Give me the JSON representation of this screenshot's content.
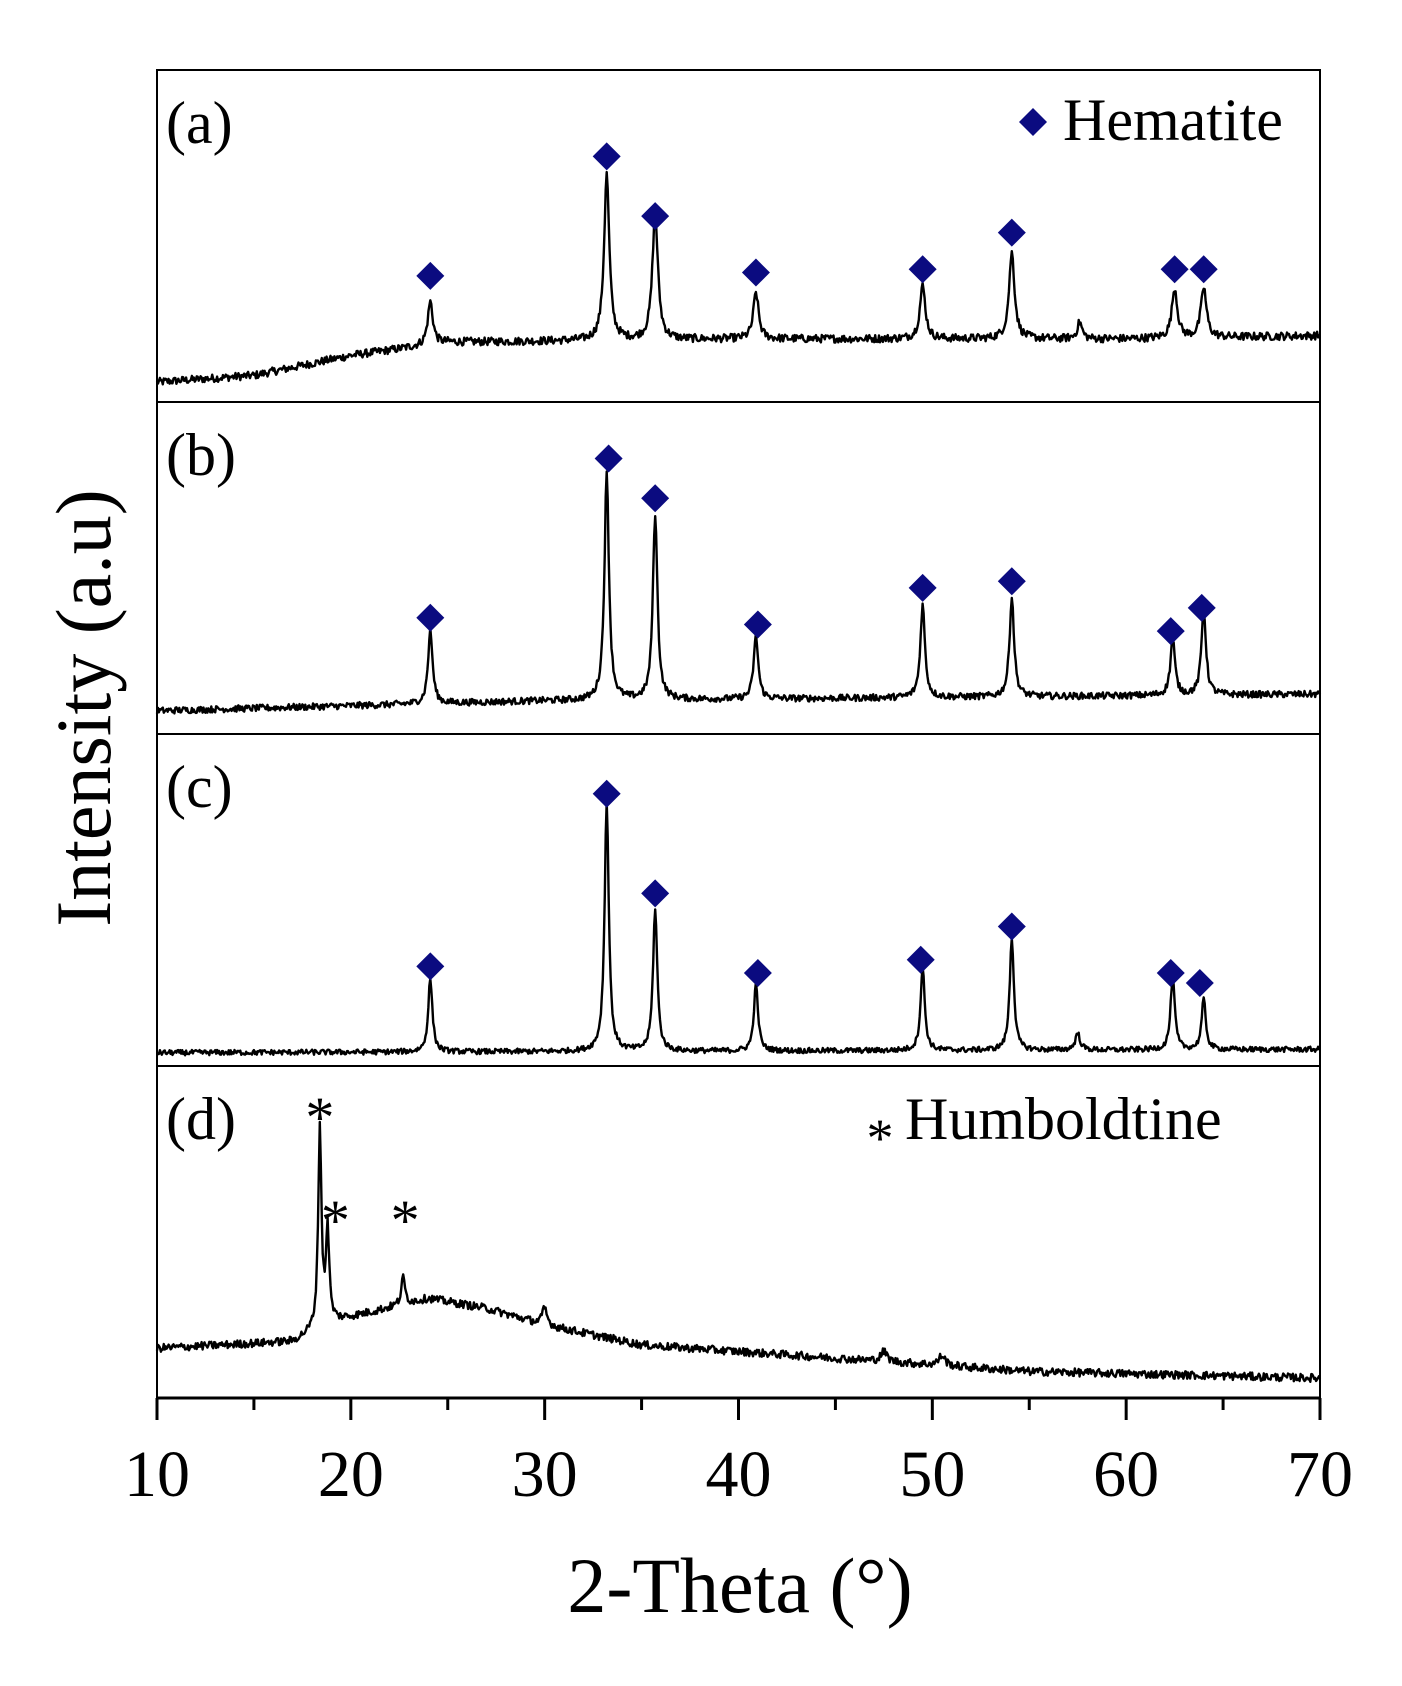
{
  "chart_data": {
    "type": "line",
    "xlabel": "2-Theta (°)",
    "ylabel": "Intensity (a.u)",
    "xlim": [
      10,
      70
    ],
    "x_ticks": [
      10,
      20,
      30,
      40,
      50,
      60,
      70
    ],
    "x_tick_labels": [
      "10",
      "20",
      "30",
      "40",
      "50",
      "60",
      "70"
    ],
    "y_units": "relative intensity (0 = panel bottom, 1 = panel top)",
    "panels": [
      {
        "label": "(a)",
        "baseline": [
          [
            10,
            0.06
          ],
          [
            15,
            0.08
          ],
          [
            20,
            0.14
          ],
          [
            25,
            0.18
          ],
          [
            40,
            0.19
          ],
          [
            60,
            0.19
          ],
          [
            70,
            0.2
          ]
        ],
        "noise": 0.012,
        "peaks": [
          {
            "x": 24.1,
            "height": 0.13,
            "width": 0.16
          },
          {
            "x": 33.2,
            "height": 0.5,
            "width": 0.16
          },
          {
            "x": 35.7,
            "height": 0.38,
            "width": 0.17
          },
          {
            "x": 40.9,
            "height": 0.14,
            "width": 0.16
          },
          {
            "x": 49.5,
            "height": 0.16,
            "width": 0.17
          },
          {
            "x": 54.1,
            "height": 0.26,
            "width": 0.17
          },
          {
            "x": 57.6,
            "height": 0.05,
            "width": 0.15
          },
          {
            "x": 62.5,
            "height": 0.15,
            "width": 0.17
          },
          {
            "x": 64.0,
            "height": 0.15,
            "width": 0.17
          }
        ],
        "markers": [
          {
            "x": 24.1,
            "y": 0.38
          },
          {
            "x": 33.2,
            "y": 0.74
          },
          {
            "x": 35.7,
            "y": 0.56
          },
          {
            "x": 40.9,
            "y": 0.39
          },
          {
            "x": 49.5,
            "y": 0.4
          },
          {
            "x": 54.1,
            "y": 0.51
          },
          {
            "x": 62.5,
            "y": 0.4
          },
          {
            "x": 64.0,
            "y": 0.4
          }
        ],
        "marker_symbol": "diamond"
      },
      {
        "label": "(b)",
        "baseline": [
          [
            10,
            0.07
          ],
          [
            30,
            0.1
          ],
          [
            50,
            0.11
          ],
          [
            70,
            0.12
          ]
        ],
        "noise": 0.01,
        "peaks": [
          {
            "x": 24.1,
            "height": 0.22,
            "width": 0.14
          },
          {
            "x": 33.2,
            "height": 0.68,
            "width": 0.14
          },
          {
            "x": 35.7,
            "height": 0.56,
            "width": 0.14
          },
          {
            "x": 40.9,
            "height": 0.19,
            "width": 0.14
          },
          {
            "x": 49.5,
            "height": 0.28,
            "width": 0.14
          },
          {
            "x": 54.1,
            "height": 0.3,
            "width": 0.14
          },
          {
            "x": 62.4,
            "height": 0.17,
            "width": 0.14
          },
          {
            "x": 64.0,
            "height": 0.26,
            "width": 0.14
          }
        ],
        "markers": [
          {
            "x": 24.1,
            "y": 0.35
          },
          {
            "x": 33.3,
            "y": 0.83
          },
          {
            "x": 35.7,
            "y": 0.71
          },
          {
            "x": 41.0,
            "y": 0.33
          },
          {
            "x": 49.5,
            "y": 0.44
          },
          {
            "x": 54.1,
            "y": 0.46
          },
          {
            "x": 62.3,
            "y": 0.31
          },
          {
            "x": 63.9,
            "y": 0.38
          }
        ],
        "marker_symbol": "diamond"
      },
      {
        "label": "(c)",
        "baseline": [
          [
            10,
            0.04
          ],
          [
            70,
            0.05
          ]
        ],
        "noise": 0.008,
        "peaks": [
          {
            "x": 24.1,
            "height": 0.22,
            "width": 0.13
          },
          {
            "x": 33.2,
            "height": 0.75,
            "width": 0.13
          },
          {
            "x": 35.7,
            "height": 0.43,
            "width": 0.13
          },
          {
            "x": 40.9,
            "height": 0.2,
            "width": 0.13
          },
          {
            "x": 49.5,
            "height": 0.25,
            "width": 0.13
          },
          {
            "x": 54.1,
            "height": 0.34,
            "width": 0.13
          },
          {
            "x": 57.5,
            "height": 0.05,
            "width": 0.15
          },
          {
            "x": 62.4,
            "height": 0.22,
            "width": 0.13
          },
          {
            "x": 64.0,
            "height": 0.15,
            "width": 0.13
          }
        ],
        "markers": [
          {
            "x": 24.1,
            "y": 0.3
          },
          {
            "x": 33.2,
            "y": 0.82
          },
          {
            "x": 35.7,
            "y": 0.52
          },
          {
            "x": 41.0,
            "y": 0.28
          },
          {
            "x": 49.4,
            "y": 0.32
          },
          {
            "x": 54.1,
            "y": 0.42
          },
          {
            "x": 62.3,
            "y": 0.28
          },
          {
            "x": 63.8,
            "y": 0.25
          }
        ],
        "marker_symbol": "diamond"
      },
      {
        "label": "(d)",
        "baseline": [
          [
            10,
            0.15
          ],
          [
            17,
            0.17
          ],
          [
            19,
            0.23
          ],
          [
            24,
            0.3
          ],
          [
            27,
            0.27
          ],
          [
            30,
            0.22
          ],
          [
            35,
            0.16
          ],
          [
            45,
            0.12
          ],
          [
            55,
            0.08
          ],
          [
            70,
            0.06
          ]
        ],
        "noise": 0.012,
        "peaks": [
          {
            "x": 18.4,
            "height": 0.6,
            "width": 0.1
          },
          {
            "x": 18.8,
            "height": 0.28,
            "width": 0.1
          },
          {
            "x": 22.7,
            "height": 0.08,
            "width": 0.12
          },
          {
            "x": 30.0,
            "height": 0.05,
            "width": 0.15
          },
          {
            "x": 47.5,
            "height": 0.03,
            "width": 0.2
          },
          {
            "x": 50.5,
            "height": 0.03,
            "width": 0.2
          }
        ],
        "markers": [
          {
            "x": 18.4,
            "y": 0.87
          },
          {
            "x": 19.2,
            "y": 0.56
          },
          {
            "x": 22.8,
            "y": 0.56
          }
        ],
        "marker_symbol": "asterisk"
      }
    ],
    "legends": [
      {
        "panel": 0,
        "symbol": "diamond",
        "text": "Hematite",
        "position": "top-right"
      },
      {
        "panel": 3,
        "symbol": "asterisk",
        "text": "Humboldtine",
        "position": "top-right"
      }
    ],
    "marker_symbols": {
      "diamond": "◆",
      "asterisk": "*"
    },
    "colors": {
      "line": "#000000",
      "marker_diamond": "#0b0b80",
      "marker_asterisk": "#000000",
      "frame": "#000000"
    }
  }
}
